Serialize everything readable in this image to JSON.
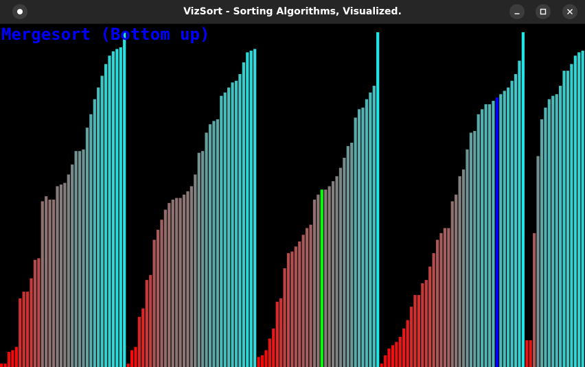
{
  "window": {
    "title": "VizSort - Sorting Algorithms, Visualized.",
    "menu_icon": "circle-dot-icon",
    "minimize_icon": "minimize-icon",
    "maximize_icon": "maximize-icon",
    "close_icon": "close-icon"
  },
  "visualization": {
    "algorithm": "Mergesort (Bottom up)",
    "colors": {
      "background": "#000000",
      "low_value": "#ff0000",
      "high_value": "#22e4e4",
      "compare_highlight": "#00ff00",
      "swap_highlight": "#0000ff",
      "label": "#0000ff"
    }
  },
  "chart_data": {
    "type": "bar",
    "ylim": [
      0,
      1
    ],
    "values": [
      0.01,
      0.01,
      0.045,
      0.05,
      0.06,
      0.205,
      0.225,
      0.225,
      0.265,
      0.32,
      0.325,
      0.495,
      0.51,
      0.5,
      0.5,
      0.54,
      0.545,
      0.55,
      0.575,
      0.605,
      0.645,
      0.645,
      0.65,
      0.715,
      0.755,
      0.8,
      0.835,
      0.87,
      0.905,
      0.93,
      0.943,
      0.95,
      0.955,
      1.0,
      0.01,
      0.05,
      0.06,
      0.15,
      0.175,
      0.26,
      0.275,
      0.38,
      0.41,
      0.44,
      0.47,
      0.49,
      0.5,
      0.505,
      0.505,
      0.515,
      0.525,
      0.54,
      0.575,
      0.64,
      0.645,
      0.7,
      0.725,
      0.735,
      0.74,
      0.81,
      0.82,
      0.835,
      0.85,
      0.855,
      0.875,
      0.91,
      0.94,
      0.945,
      0.95,
      0.03,
      0.035,
      0.05,
      0.085,
      0.115,
      0.195,
      0.205,
      0.295,
      0.34,
      0.345,
      0.36,
      0.375,
      0.395,
      0.415,
      0.425,
      0.5,
      0.515,
      0.53,
      0.53,
      0.54,
      0.555,
      0.57,
      0.595,
      0.625,
      0.66,
      0.67,
      0.745,
      0.77,
      0.775,
      0.8,
      0.82,
      0.84,
      1.0,
      0.01,
      0.035,
      0.055,
      0.065,
      0.075,
      0.09,
      0.115,
      0.14,
      0.18,
      0.215,
      0.215,
      0.25,
      0.26,
      0.3,
      0.34,
      0.38,
      0.4,
      0.415,
      0.415,
      0.495,
      0.515,
      0.57,
      0.59,
      0.65,
      0.7,
      0.705,
      0.755,
      0.77,
      0.785,
      0.785,
      0.795,
      0.805,
      0.815,
      0.825,
      0.835,
      0.855,
      0.875,
      0.915,
      1.0,
      0.08,
      0.08,
      0.4,
      0.63,
      0.74,
      0.775,
      0.8,
      0.81,
      0.815,
      0.84,
      0.885,
      0.885,
      0.905,
      0.93,
      0.94,
      0.945
    ],
    "highlight_compare": [
      86
    ],
    "highlight_swap": [
      133
    ]
  }
}
